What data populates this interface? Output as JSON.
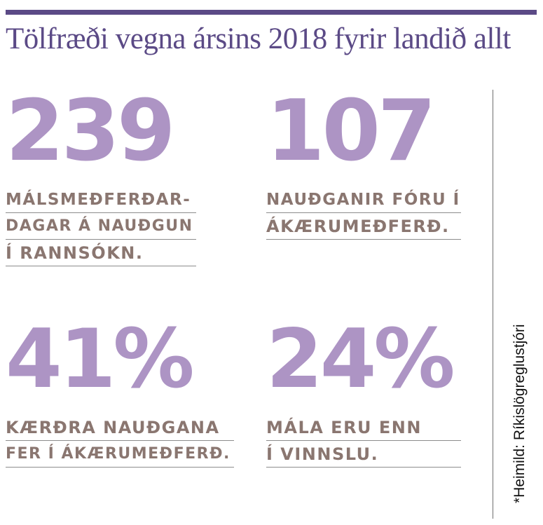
{
  "headline": "Tölfræði vegna ársins 2018 fyrir landið allt",
  "stats": [
    {
      "value": "239",
      "lines": [
        "MÁLSMEÐFERÐAR-",
        "DAGAR Á NAUÐGUN",
        "Í RANNSÓKN."
      ]
    },
    {
      "value": "107",
      "lines": [
        "NAUÐGANIR FÓRU Í",
        "ÁKÆRUMEÐFERÐ."
      ]
    },
    {
      "value": "41%",
      "lines": [
        "KÆRÐRA NAUÐGANA",
        "FER Í ÁKÆRUMEÐFERÐ."
      ]
    },
    {
      "value": "24%",
      "lines": [
        "MÁLA ERU ENN",
        "Í VINNSLU."
      ]
    }
  ],
  "source": "*Heimild: Ríkislögreglustjóri",
  "colors": {
    "accent_bar": "#5b4a86",
    "big_number": "#ad94c4",
    "description": "#8a7670",
    "rule": "#8c8c8c"
  }
}
